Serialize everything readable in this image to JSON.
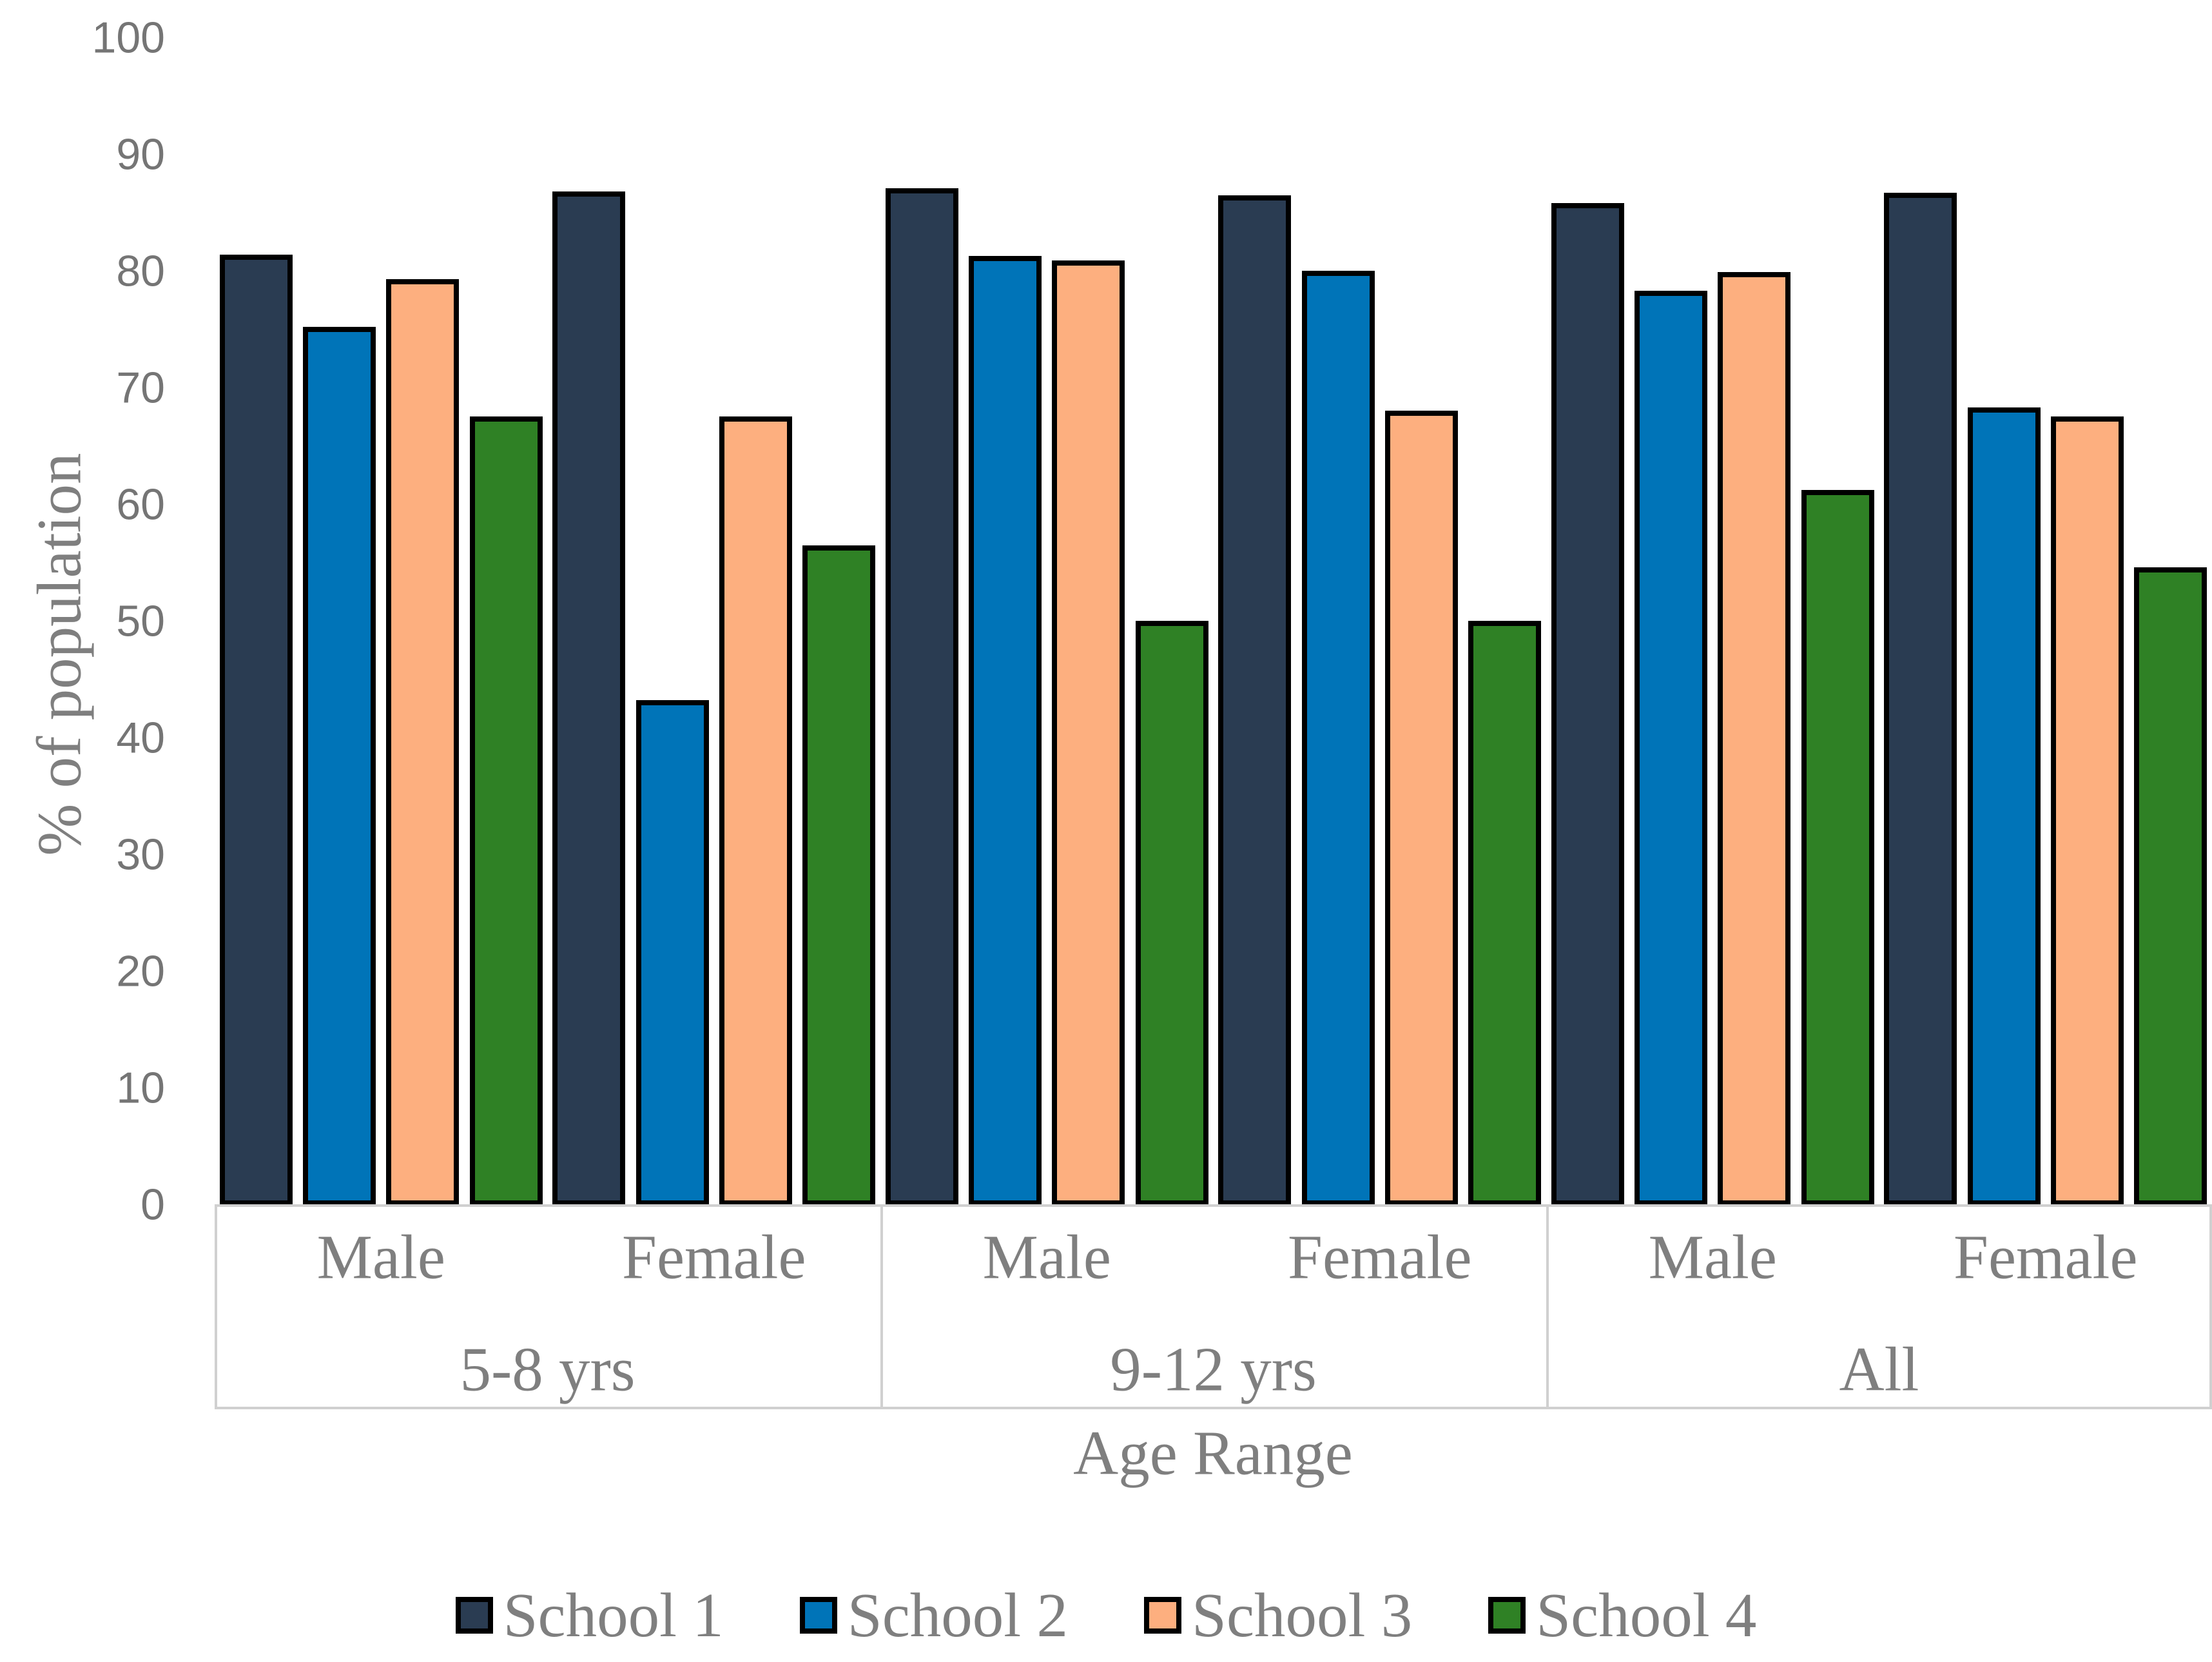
{
  "chart_data": {
    "type": "bar",
    "title": "",
    "xlabel": "Age Range",
    "ylabel": "% of population",
    "ylim": [
      0,
      100
    ],
    "ytick_interval": 10,
    "ytick_labels": [
      "0",
      "10",
      "20",
      "30",
      "40",
      "50",
      "60",
      "70",
      "80",
      "90",
      "100"
    ],
    "grid": false,
    "legend_position": "bottom",
    "group_labels": [
      "5-8 yrs",
      "9-12 yrs",
      "All"
    ],
    "sex_labels": [
      "Male",
      "Female",
      "Male",
      "Female",
      "Male",
      "Female"
    ],
    "series": [
      {
        "name": "School 1",
        "color": "#2A3C52",
        "values": [
          81.5,
          86.9,
          87.2,
          86.6,
          85.9,
          86.8
        ]
      },
      {
        "name": "School 2",
        "color": "#0074B8",
        "values": [
          75.3,
          43.3,
          81.4,
          80.1,
          78.4,
          68.4
        ]
      },
      {
        "name": "School 3",
        "color": "#FDAF7F",
        "values": [
          79.4,
          67.6,
          81.0,
          68.1,
          80.0,
          67.6
        ]
      },
      {
        "name": "School 4",
        "color": "#2F8125",
        "values": [
          67.6,
          56.6,
          50.1,
          50.1,
          61.3,
          54.7
        ]
      }
    ],
    "bar_border_color": "#000000"
  },
  "style_colors": {
    "tick_text": "#757575",
    "label_text": "#7f7f7f",
    "axis_line": "#d0d0d0"
  }
}
